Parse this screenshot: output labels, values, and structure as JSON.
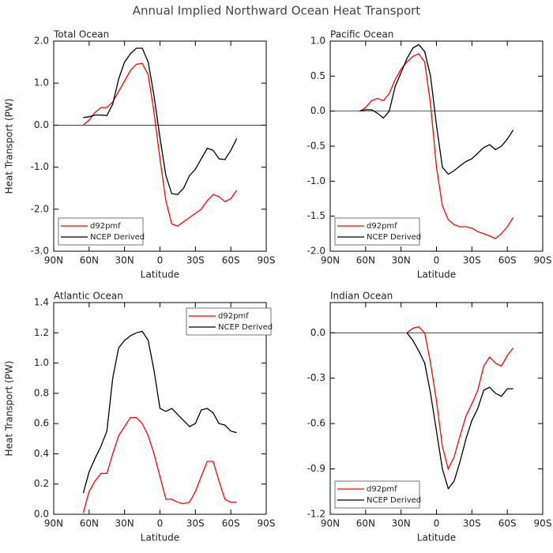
{
  "title": "Annual Implied Northward Ocean Heat Transport",
  "chart_data": [
    {
      "type": "line",
      "title": "Total Ocean",
      "xlabel": "Latitude",
      "ylabel": "Heat Transport (PW)",
      "x": [
        65,
        60,
        55,
        50,
        45,
        40,
        35,
        30,
        25,
        20,
        15,
        10,
        5,
        0,
        -5,
        -10,
        -15,
        -20,
        -25,
        -30,
        -35,
        -40,
        -45,
        -50,
        -55,
        -60,
        -65
      ],
      "xlim": [
        90,
        -90
      ],
      "xticks": [
        {
          "value": 90,
          "label": "90N"
        },
        {
          "value": 60,
          "label": "60N"
        },
        {
          "value": 30,
          "label": "30N"
        },
        0,
        {
          "value": -30,
          "label": "30S"
        },
        {
          "value": -60,
          "label": "60S"
        },
        {
          "value": -90,
          "label": "90S"
        }
      ],
      "ylim": [
        -3,
        2
      ],
      "yticks": [
        {
          "value": -3,
          "label": "-3.0"
        },
        {
          "value": -2,
          "label": "-2.0"
        },
        {
          "value": -1,
          "label": "-1.0"
        },
        {
          "value": 0,
          "label": "0.0"
        },
        {
          "value": 1,
          "label": "1.0"
        },
        {
          "value": 2,
          "label": "2.0"
        }
      ],
      "zero_line": true,
      "legend": "lower left",
      "series": [
        {
          "name": "d92pmf",
          "color": "#ff0000",
          "values": [
            0.0,
            0.12,
            0.3,
            0.42,
            0.42,
            0.55,
            0.8,
            1.05,
            1.3,
            1.45,
            1.47,
            1.2,
            0.3,
            -0.8,
            -1.8,
            -2.35,
            -2.4,
            -2.3,
            -2.2,
            -2.1,
            -2.0,
            -1.8,
            -1.65,
            -1.7,
            -1.82,
            -1.75,
            -1.55
          ]
        },
        {
          "name": "NCEP Derived",
          "color": "#000000",
          "values": [
            0.18,
            0.2,
            0.24,
            0.24,
            0.23,
            0.5,
            1.1,
            1.5,
            1.7,
            1.83,
            1.83,
            1.5,
            0.7,
            -0.3,
            -1.2,
            -1.63,
            -1.65,
            -1.5,
            -1.2,
            -1.05,
            -0.8,
            -0.55,
            -0.6,
            -0.8,
            -0.82,
            -0.6,
            -0.32
          ]
        }
      ]
    },
    {
      "type": "line",
      "title": "Pacific Ocean",
      "xlabel": "Latitude",
      "x": [
        65,
        60,
        55,
        50,
        45,
        40,
        35,
        30,
        25,
        20,
        15,
        10,
        5,
        0,
        -5,
        -10,
        -15,
        -20,
        -25,
        -30,
        -35,
        -40,
        -45,
        -50,
        -55,
        -60,
        -65
      ],
      "xlim": [
        90,
        -90
      ],
      "xticks": [
        {
          "value": 90,
          "label": "90N"
        },
        {
          "value": 60,
          "label": "60N"
        },
        {
          "value": 30,
          "label": "30N"
        },
        0,
        {
          "value": -30,
          "label": "30S"
        },
        {
          "value": -60,
          "label": "60S"
        },
        {
          "value": -90,
          "label": "90S"
        }
      ],
      "ylim": [
        -2,
        1
      ],
      "yticks": [
        {
          "value": -2,
          "label": "-2.0"
        },
        -1.5,
        {
          "value": -1,
          "label": "-1.0"
        },
        -0.5,
        {
          "value": 0,
          "label": "0.0"
        },
        0.5,
        {
          "value": 1,
          "label": "1.0"
        }
      ],
      "zero_line": true,
      "legend": "lower left",
      "series": [
        {
          "name": "d92pmf",
          "color": "#ff0000",
          "values": [
            0.0,
            0.05,
            0.15,
            0.18,
            0.15,
            0.25,
            0.45,
            0.6,
            0.7,
            0.78,
            0.82,
            0.7,
            0.1,
            -0.8,
            -1.35,
            -1.55,
            -1.62,
            -1.65,
            -1.65,
            -1.67,
            -1.72,
            -1.75,
            -1.78,
            -1.82,
            -1.75,
            -1.65,
            -1.52
          ]
        },
        {
          "name": "NCEP Derived",
          "color": "#000000",
          "values": [
            0.0,
            0.02,
            0.02,
            -0.03,
            -0.1,
            0.0,
            0.35,
            0.55,
            0.75,
            0.9,
            0.95,
            0.85,
            0.5,
            -0.2,
            -0.8,
            -0.9,
            -0.85,
            -0.78,
            -0.72,
            -0.68,
            -0.6,
            -0.52,
            -0.48,
            -0.55,
            -0.5,
            -0.4,
            -0.27
          ]
        }
      ]
    },
    {
      "type": "line",
      "title": "Atlantic Ocean",
      "xlabel": "Latitude",
      "ylabel": "Heat Transport (PW)",
      "x": [
        65,
        60,
        55,
        50,
        45,
        40,
        35,
        30,
        25,
        20,
        15,
        10,
        5,
        0,
        -5,
        -10,
        -15,
        -20,
        -25,
        -30,
        -35,
        -40,
        -45,
        -50,
        -55,
        -60,
        -65
      ],
      "xlim": [
        90,
        -90
      ],
      "xticks": [
        {
          "value": 90,
          "label": "90N"
        },
        {
          "value": 60,
          "label": "60N"
        },
        {
          "value": 30,
          "label": "30N"
        },
        0,
        {
          "value": -30,
          "label": "30S"
        },
        {
          "value": -60,
          "label": "60S"
        },
        {
          "value": -90,
          "label": "90S"
        }
      ],
      "ylim": [
        0,
        1.4
      ],
      "yticks": [
        {
          "value": 0,
          "label": "0.0"
        },
        0.2,
        0.4,
        0.6,
        0.8,
        {
          "value": 1,
          "label": "1.0"
        },
        1.2,
        1.4
      ],
      "zero_line": false,
      "legend": "upper right",
      "series": [
        {
          "name": "d92pmf",
          "color": "#ff0000",
          "values": [
            0.01,
            0.15,
            0.22,
            0.27,
            0.27,
            0.4,
            0.52,
            0.58,
            0.64,
            0.64,
            0.6,
            0.52,
            0.4,
            0.25,
            0.1,
            0.1,
            0.08,
            0.07,
            0.08,
            0.15,
            0.25,
            0.35,
            0.35,
            0.22,
            0.1,
            0.08,
            0.08
          ]
        },
        {
          "name": "NCEP Derived",
          "color": "#000000",
          "values": [
            0.14,
            0.28,
            0.37,
            0.45,
            0.55,
            0.9,
            1.1,
            1.15,
            1.18,
            1.2,
            1.21,
            1.15,
            0.95,
            0.7,
            0.68,
            0.7,
            0.66,
            0.62,
            0.58,
            0.6,
            0.69,
            0.7,
            0.67,
            0.6,
            0.59,
            0.55,
            0.54
          ]
        }
      ]
    },
    {
      "type": "line",
      "title": "Indian Ocean",
      "xlabel": "Latitude",
      "x": [
        25,
        20,
        15,
        10,
        5,
        0,
        -5,
        -10,
        -15,
        -20,
        -25,
        -30,
        -35,
        -40,
        -45,
        -50,
        -55,
        -60,
        -65
      ],
      "xlim": [
        90,
        -90
      ],
      "xticks": [
        {
          "value": 90,
          "label": "90N"
        },
        {
          "value": 60,
          "label": "60N"
        },
        {
          "value": 30,
          "label": "30N"
        },
        0,
        {
          "value": -30,
          "label": "30S"
        },
        {
          "value": -60,
          "label": "60S"
        },
        {
          "value": -90,
          "label": "90S"
        }
      ],
      "ylim": [
        -1.2,
        0.2
      ],
      "yticks": [
        -1.2,
        -0.9,
        -0.6,
        -0.3,
        {
          "value": 0,
          "label": "0.0"
        }
      ],
      "zero_line": true,
      "legend": "lower left",
      "series": [
        {
          "name": "d92pmf",
          "color": "#ff0000",
          "values": [
            0.0,
            0.03,
            0.04,
            0.0,
            -0.2,
            -0.45,
            -0.75,
            -0.9,
            -0.82,
            -0.68,
            -0.55,
            -0.47,
            -0.38,
            -0.22,
            -0.16,
            -0.2,
            -0.22,
            -0.15,
            -0.1
          ]
        },
        {
          "name": "NCEP Derived",
          "color": "#000000",
          "values": [
            0.0,
            -0.05,
            -0.12,
            -0.2,
            -0.4,
            -0.65,
            -0.9,
            -1.03,
            -0.98,
            -0.85,
            -0.7,
            -0.58,
            -0.5,
            -0.38,
            -0.36,
            -0.4,
            -0.42,
            -0.37,
            -0.37
          ]
        }
      ]
    }
  ]
}
